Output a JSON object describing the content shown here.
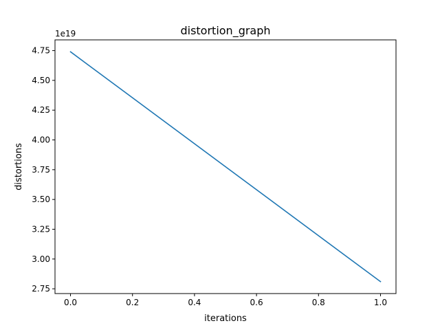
{
  "chart_data": {
    "type": "line",
    "title": "distortion_graph",
    "xlabel": "iterations",
    "ylabel": "distortions",
    "y_offset_label": "1e19",
    "x_ticks": [
      0.0,
      0.2,
      0.4,
      0.6,
      0.8,
      1.0
    ],
    "x_tick_labels": [
      "0.0",
      "0.2",
      "0.4",
      "0.6",
      "0.8",
      "1.0"
    ],
    "y_ticks": [
      2.75,
      3.0,
      3.25,
      3.5,
      3.75,
      4.0,
      4.25,
      4.5,
      4.75
    ],
    "y_tick_labels": [
      "2.75",
      "3.00",
      "3.25",
      "3.50",
      "3.75",
      "4.00",
      "4.25",
      "4.50",
      "4.75"
    ],
    "xlim": [
      -0.05,
      1.05
    ],
    "ylim": [
      2.71,
      4.84
    ],
    "grid": false,
    "series": [
      {
        "color": "#1f77b4",
        "x": [
          0,
          1
        ],
        "y": [
          4.74,
          2.81
        ]
      }
    ]
  }
}
